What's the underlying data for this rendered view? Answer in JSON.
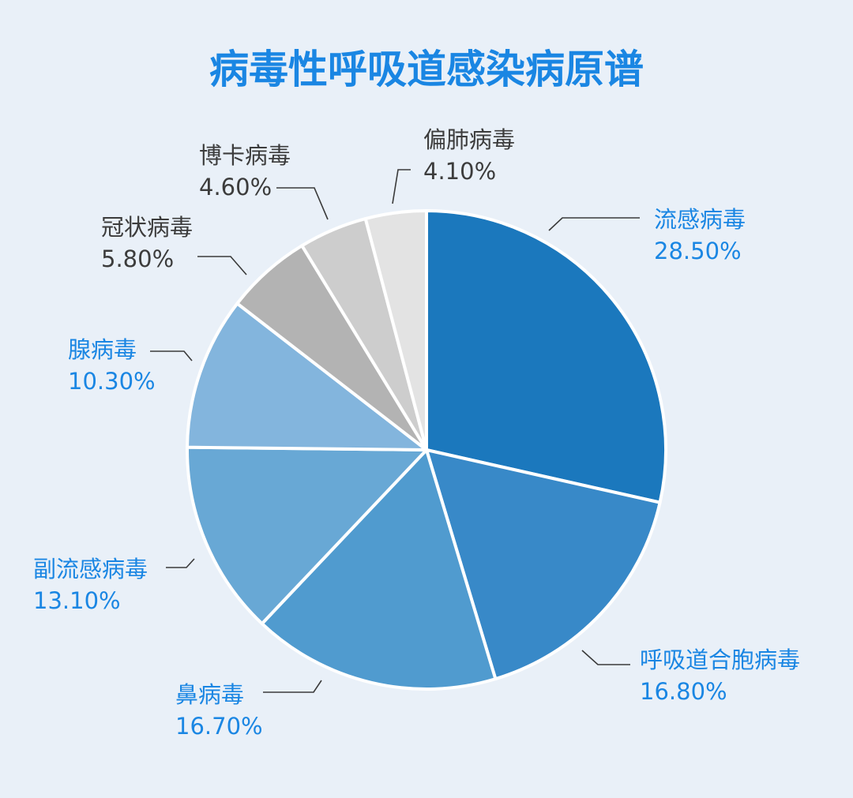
{
  "chart_data": {
    "type": "pie",
    "title": "病毒性呼吸道感染病原谱",
    "start_angle_deg": 0,
    "direction": "clockwise",
    "slices": [
      {
        "label": "流感病毒",
        "value": 28.5,
        "value_label": "28.50%",
        "color": "#1b78bd",
        "label_color": "#1a86e3"
      },
      {
        "label": "呼吸道合胞病毒",
        "value": 16.8,
        "value_label": "16.80%",
        "color": "#3889c8",
        "label_color": "#1a86e3"
      },
      {
        "label": "鼻病毒",
        "value": 16.7,
        "value_label": "16.70%",
        "color": "#509bcf",
        "label_color": "#1a86e3"
      },
      {
        "label": "副流感病毒",
        "value": 13.1,
        "value_label": "13.10%",
        "color": "#68a8d5",
        "label_color": "#1a86e3"
      },
      {
        "label": "腺病毒",
        "value": 10.3,
        "value_label": "10.30%",
        "color": "#83b5dd",
        "label_color": "#1a86e3"
      },
      {
        "label": "冠状病毒",
        "value": 5.8,
        "value_label": "5.80%",
        "color": "#b3b3b3",
        "label_color": "#3c3c3c"
      },
      {
        "label": "博卡病毒",
        "value": 4.6,
        "value_label": "4.60%",
        "color": "#cdcdcd",
        "label_color": "#3c3c3c"
      },
      {
        "label": "偏肺病毒",
        "value": 4.1,
        "value_label": "4.10%",
        "color": "#e3e3e3",
        "label_color": "#3c3c3c"
      }
    ],
    "legend": "none",
    "data_labels": "outside-with-leader-lines"
  }
}
